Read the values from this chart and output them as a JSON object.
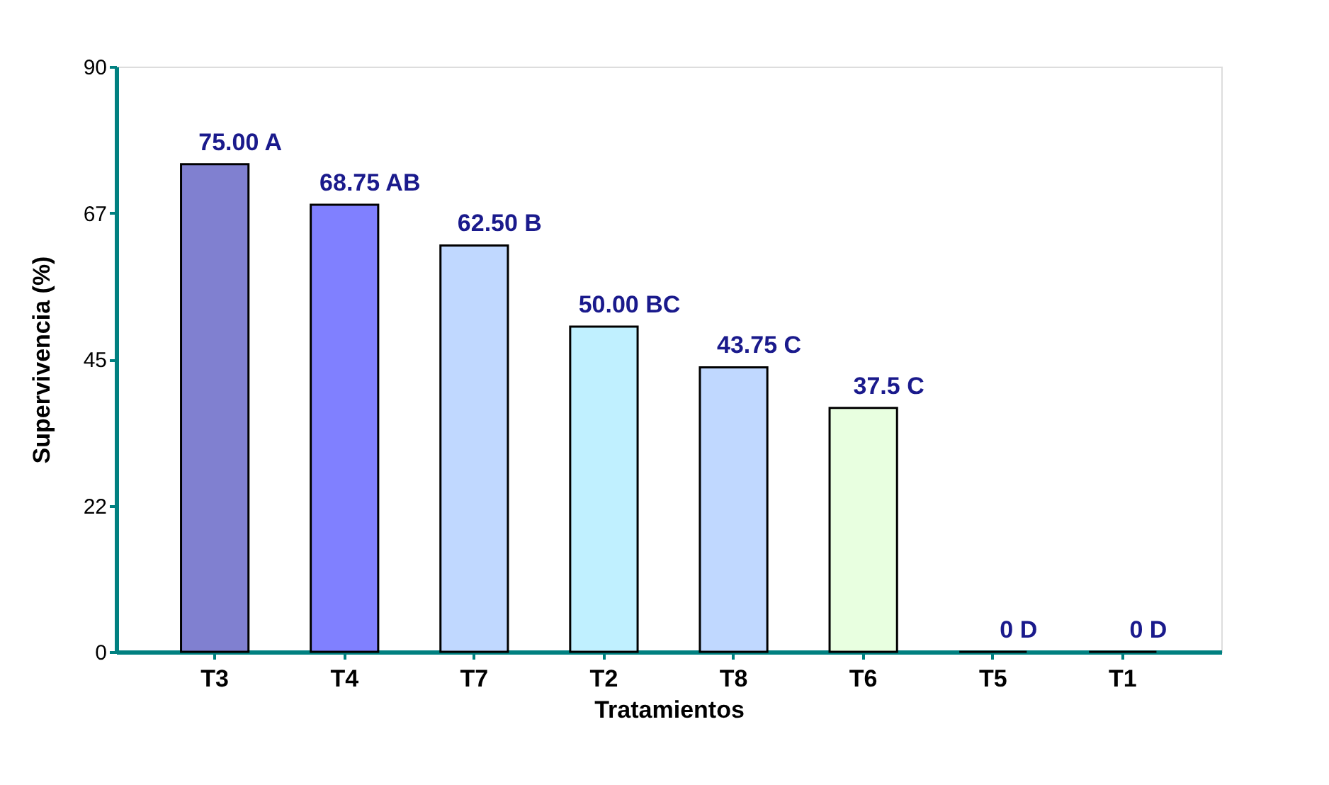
{
  "chart_data": {
    "type": "bar",
    "xlabel": "Tratamientos",
    "ylabel": "Supervivencia (%)",
    "categories": [
      "T3",
      "T4",
      "T7",
      "T2",
      "T8",
      "T6",
      "T5",
      "T1"
    ],
    "values": [
      75,
      68.75,
      62.5,
      50,
      43.75,
      37.5,
      0,
      0
    ],
    "colors": [
      "#8080d0",
      "#8080ff",
      "#c0d8ff",
      "#c0f0ff",
      "#c0d8ff",
      "#e8ffe0",
      "#000000",
      "#000000"
    ],
    "value_labels": [
      "75.00 A",
      "68.75 AB",
      "62.50 B",
      "50.00 BC",
      "43.75 C",
      "37.5 C",
      "0 D",
      "0 D"
    ],
    "ylim": [
      0,
      90
    ],
    "yticks": [
      0,
      {
        "value": 22.5,
        "label": "22"
      },
      45,
      {
        "value": 67.5,
        "label": "67"
      },
      90
    ],
    "grid": false
  }
}
